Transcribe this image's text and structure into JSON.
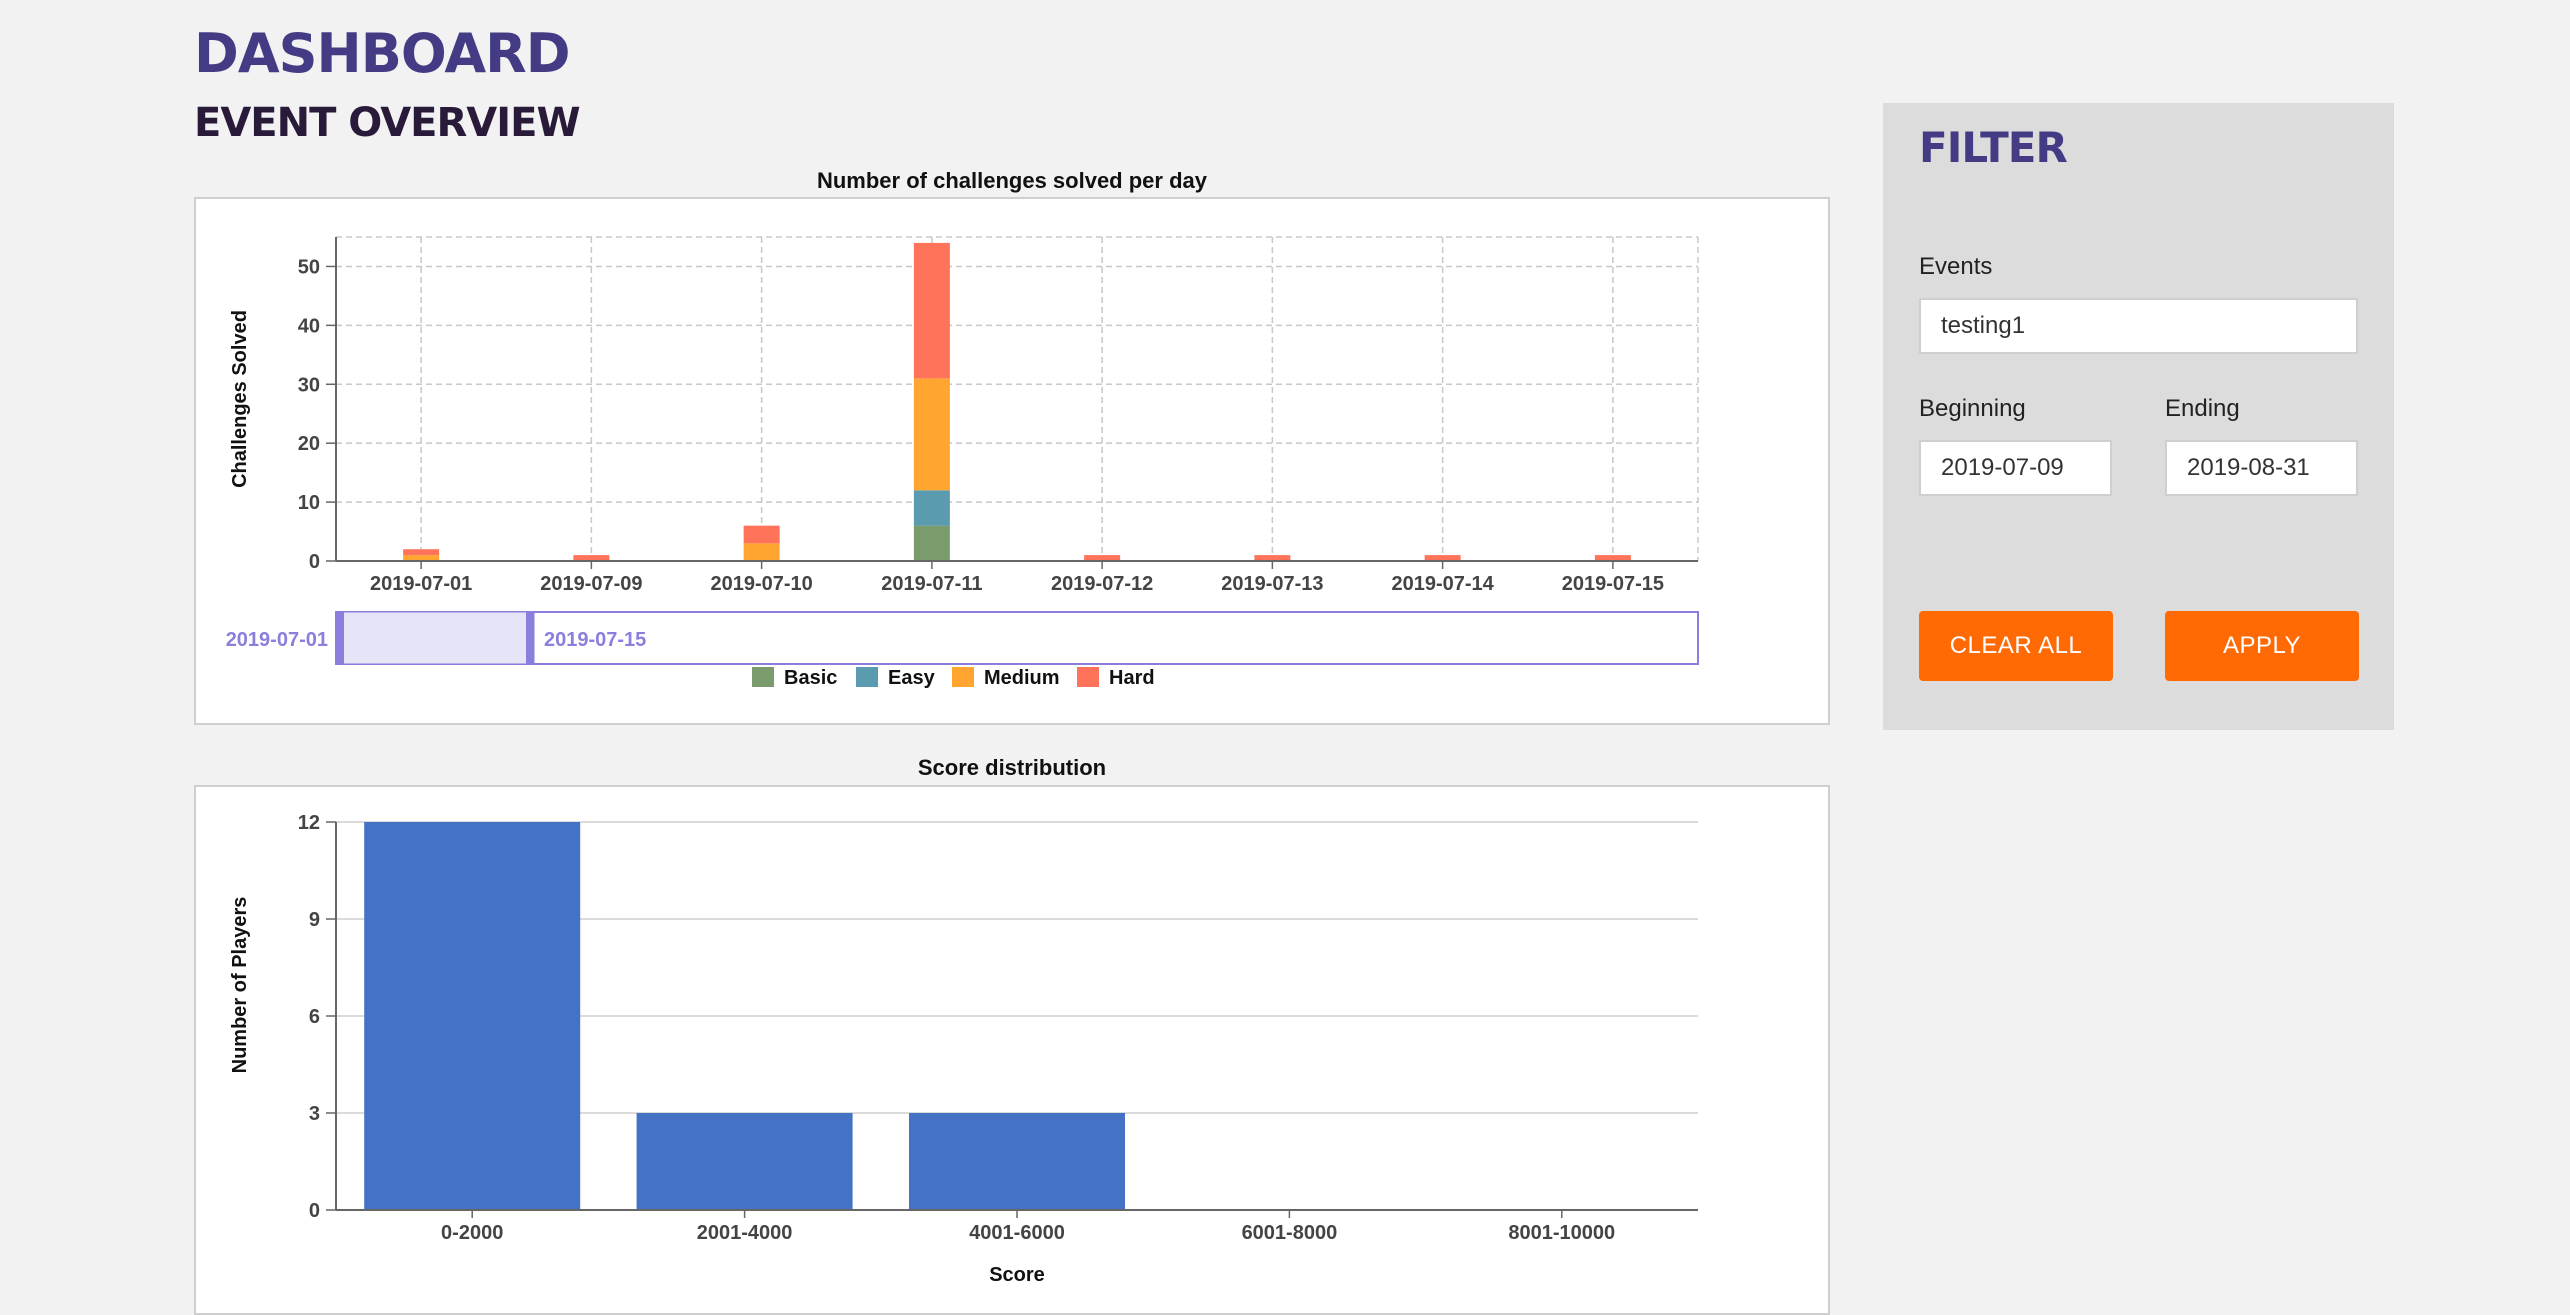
{
  "header": {
    "title": "DASHBOARD",
    "section": "EVENT OVERVIEW"
  },
  "filter": {
    "title": "FILTER",
    "events_label": "Events",
    "events_value": "testing1",
    "beginning_label": "Beginning",
    "beginning_value": "2019-07-09",
    "ending_label": "Ending",
    "ending_value": "2019-08-31",
    "clear_label": "CLEAR ALL",
    "apply_label": "APPLY"
  },
  "chart_data": [
    {
      "type": "bar",
      "stacked": true,
      "title": "Number of challenges solved per day",
      "xlabel": "",
      "ylabel": "Challenges Solved",
      "categories": [
        "2019-07-01",
        "2019-07-09",
        "2019-07-10",
        "2019-07-11",
        "2019-07-12",
        "2019-07-13",
        "2019-07-14",
        "2019-07-15"
      ],
      "series": [
        {
          "name": "Basic",
          "color": "#7a9b6c",
          "values": [
            0,
            0,
            0,
            6,
            0,
            0,
            0,
            0
          ]
        },
        {
          "name": "Easy",
          "color": "#5a9bb0",
          "values": [
            0,
            0,
            0,
            6,
            0,
            0,
            0,
            0
          ]
        },
        {
          "name": "Medium",
          "color": "#ffa530",
          "values": [
            1,
            0,
            3,
            19,
            0,
            0,
            0,
            0
          ]
        },
        {
          "name": "Hard",
          "color": "#ff735a",
          "values": [
            1,
            1,
            3,
            23,
            1,
            1,
            1,
            1
          ]
        }
      ],
      "ylim": [
        0,
        55
      ],
      "yticks": [
        0,
        10,
        20,
        30,
        40,
        50
      ],
      "grid": true,
      "legend": "bottom",
      "brush": {
        "start_label": "2019-07-01",
        "end_label": "2019-07-15"
      }
    },
    {
      "type": "bar",
      "title": "Score distribution",
      "xlabel": "Score",
      "ylabel": "Number of Players",
      "categories": [
        "0-2000",
        "2001-4000",
        "4001-6000",
        "6001-8000",
        "8001-10000"
      ],
      "values": [
        12,
        3,
        3,
        0,
        0
      ],
      "color": "#4472c4",
      "ylim": [
        0,
        12
      ],
      "yticks": [
        0,
        3,
        6,
        9,
        12
      ],
      "grid": true
    }
  ]
}
